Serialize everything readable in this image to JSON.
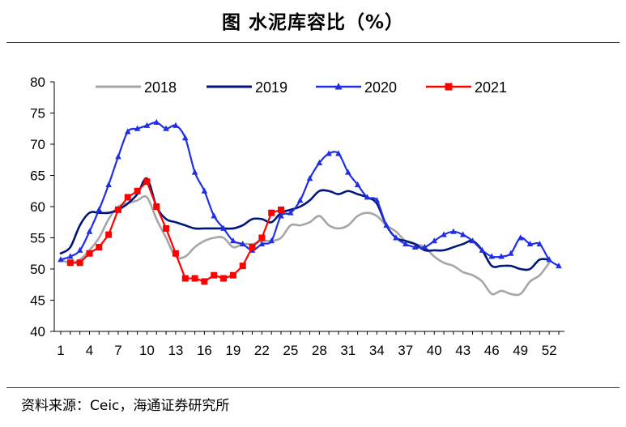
{
  "title": "图  水泥库容比（%）",
  "source": "资料来源：Ceic，海通证券研究所",
  "chart_data": {
    "type": "line",
    "title": "图  水泥库容比（%）",
    "xlabel": "",
    "ylabel": "",
    "xlim": [
      1,
      53
    ],
    "ylim": [
      40,
      80
    ],
    "y_ticks": [
      40,
      45,
      50,
      55,
      60,
      65,
      70,
      75,
      80
    ],
    "x_ticks": [
      1,
      4,
      7,
      10,
      13,
      16,
      19,
      22,
      25,
      28,
      31,
      34,
      37,
      40,
      43,
      46,
      49,
      52
    ],
    "legend_position": "top",
    "grid": false,
    "series": [
      {
        "name": "2018",
        "color": "#a6a6a6",
        "marker": "none",
        "x": [
          1,
          2,
          3,
          4,
          5,
          6,
          7,
          8,
          9,
          10,
          11,
          12,
          13,
          14,
          15,
          16,
          17,
          18,
          19,
          20,
          21,
          22,
          23,
          24,
          25,
          26,
          27,
          28,
          29,
          30,
          31,
          32,
          33,
          34,
          35,
          36,
          37,
          38,
          39,
          40,
          41,
          42,
          43,
          44,
          45,
          46,
          47,
          48,
          49,
          50,
          51,
          52
        ],
        "y": [
          51.5,
          51,
          51.5,
          53,
          55,
          58,
          60,
          60.5,
          61,
          61.5,
          58,
          55,
          52,
          52,
          53.5,
          54.5,
          55,
          55,
          53.5,
          54,
          54,
          54.5,
          54.5,
          55,
          57,
          57,
          57.5,
          58.5,
          57,
          56.5,
          57,
          58.5,
          59,
          58.5,
          57,
          56,
          54.5,
          54,
          53.5,
          52,
          51,
          50.5,
          49.5,
          49,
          48,
          46,
          46.5,
          46,
          46,
          48,
          49,
          51
        ]
      },
      {
        "name": "2019",
        "color": "#00177a",
        "marker": "none",
        "x": [
          1,
          2,
          3,
          4,
          5,
          6,
          7,
          8,
          9,
          10,
          11,
          12,
          13,
          14,
          15,
          16,
          17,
          18,
          19,
          20,
          21,
          22,
          23,
          24,
          25,
          26,
          27,
          28,
          29,
          30,
          31,
          32,
          33,
          34,
          35,
          36,
          37,
          38,
          39,
          40,
          41,
          42,
          43,
          44,
          45,
          46,
          47,
          48,
          49,
          50,
          51,
          52
        ],
        "y": [
          52.5,
          53.5,
          57,
          59,
          59,
          59,
          59.5,
          60.5,
          62,
          64.5,
          60,
          58,
          57.5,
          57,
          56.5,
          56.5,
          56.5,
          56.5,
          56.5,
          57,
          58,
          58,
          57.5,
          59,
          59.5,
          60,
          61,
          62.5,
          62.5,
          62,
          62.5,
          62,
          61.5,
          60.5,
          57,
          55,
          54.5,
          54,
          53,
          53,
          53,
          53.5,
          54,
          54.5,
          53,
          50.5,
          50.5,
          50.5,
          50,
          50,
          51.5,
          51.5
        ]
      },
      {
        "name": "2020",
        "color": "#1f2fe8",
        "marker": "triangle",
        "x": [
          1,
          2,
          3,
          4,
          5,
          6,
          7,
          8,
          9,
          10,
          11,
          12,
          13,
          14,
          15,
          16,
          17,
          18,
          19,
          20,
          21,
          22,
          23,
          24,
          25,
          26,
          27,
          28,
          29,
          30,
          31,
          32,
          33,
          34,
          35,
          36,
          37,
          38,
          39,
          40,
          41,
          42,
          43,
          44,
          45,
          46,
          47,
          48,
          49,
          50,
          51,
          52,
          53
        ],
        "y": [
          51.5,
          52,
          53,
          56,
          59.5,
          63.5,
          68,
          72,
          72.5,
          73,
          73.5,
          72.5,
          73,
          71,
          65.5,
          62.5,
          58.5,
          56.5,
          54.5,
          54,
          53,
          54,
          54.5,
          58.5,
          59,
          61,
          64.5,
          67,
          68.5,
          68.5,
          65.5,
          63.5,
          61.5,
          61,
          57,
          55,
          54,
          53.5,
          53.5,
          54.5,
          55.5,
          56,
          55.5,
          54.5,
          53,
          52,
          52,
          52.5,
          55,
          54,
          54,
          51.5,
          50.5
        ]
      },
      {
        "name": "2021",
        "color": "#ff0000",
        "marker": "square",
        "x": [
          2,
          3,
          4,
          5,
          6,
          7,
          8,
          9,
          10,
          11,
          12,
          13,
          14,
          15,
          16,
          17,
          18,
          19,
          20,
          21,
          22,
          23,
          24
        ],
        "y": [
          51,
          51,
          52.5,
          53.5,
          55.5,
          59.5,
          61.5,
          62.5,
          64,
          60,
          56.5,
          52.5,
          48.5,
          48.5,
          48,
          49,
          48.5,
          49,
          50.5,
          53.5,
          55,
          59,
          59.5
        ]
      }
    ]
  }
}
